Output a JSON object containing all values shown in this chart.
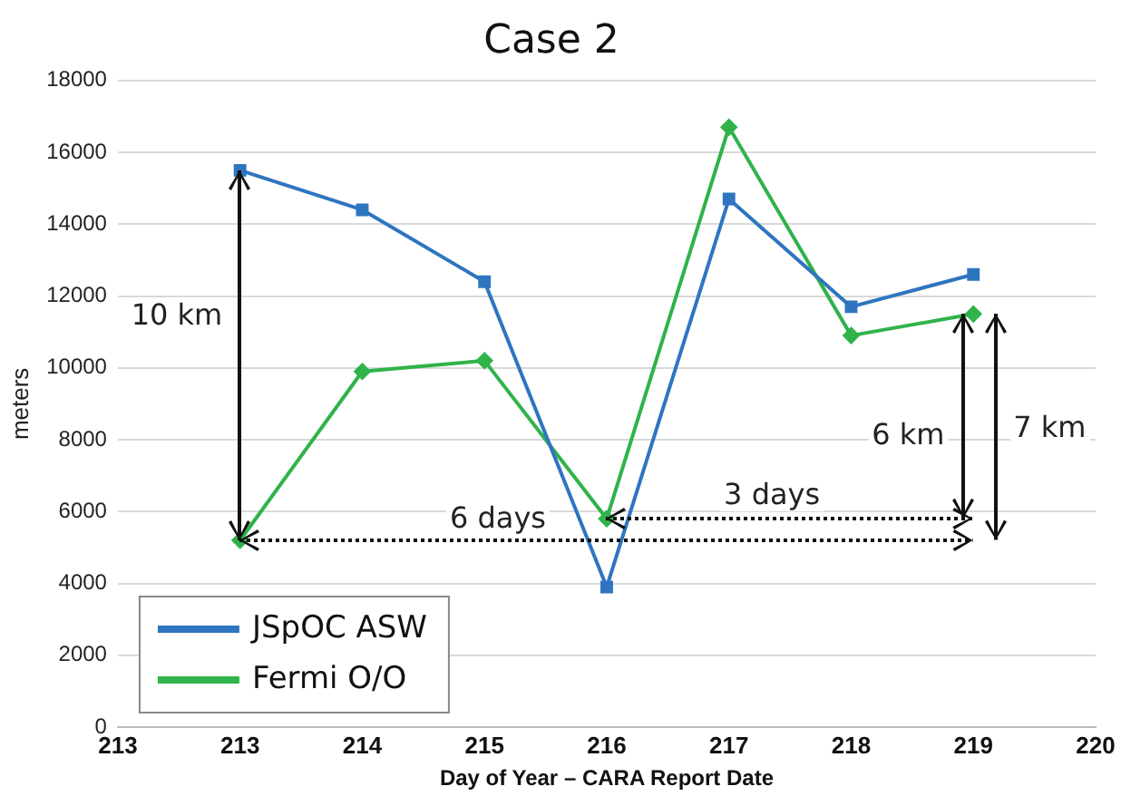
{
  "chart_data": {
    "type": "line",
    "title": "Case 2",
    "xlabel": "Day of Year – CARA Report Date",
    "ylabel": "meters",
    "categories": [
      "213",
      "213",
      "214",
      "215",
      "216",
      "217",
      "218",
      "219",
      "220"
    ],
    "series": [
      {
        "name": "JSpOC ASW",
        "color": "#2e75c0",
        "marker": "square",
        "values": [
          null,
          15500,
          14400,
          12400,
          3900,
          14700,
          11700,
          12600,
          null
        ]
      },
      {
        "name": "Fermi O/O",
        "color": "#2fb34a",
        "marker": "diamond",
        "values": [
          null,
          5200,
          9900,
          10200,
          5800,
          16700,
          10900,
          11500,
          null
        ]
      }
    ],
    "ylim": [
      0,
      18000
    ],
    "yticks": [
      0,
      2000,
      4000,
      6000,
      8000,
      10000,
      12000,
      14000,
      16000,
      18000
    ],
    "grid": "y",
    "legend": "bottom left",
    "annotations": [
      "10 km",
      "6 days",
      "3 days",
      "6 km",
      "7 km"
    ]
  }
}
